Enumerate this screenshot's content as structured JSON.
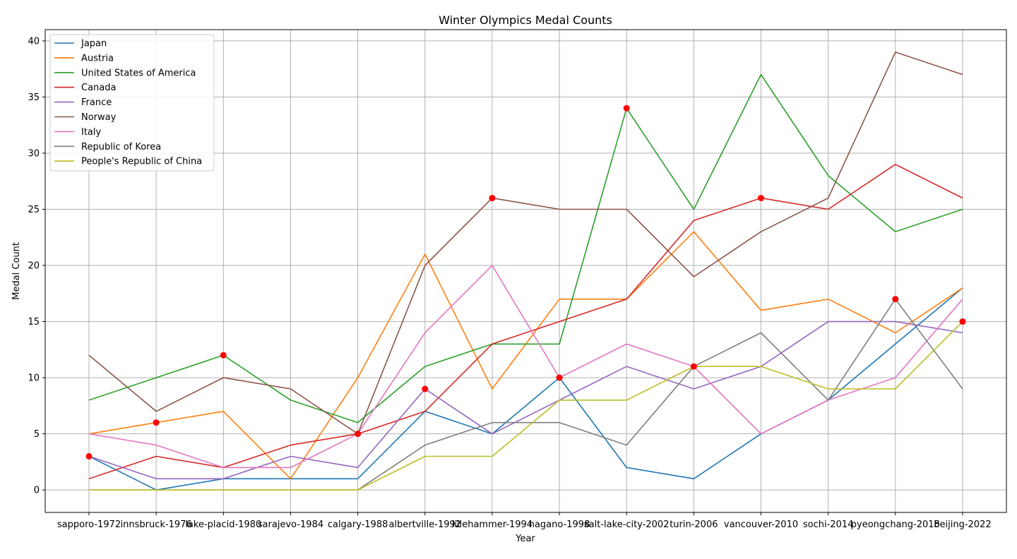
{
  "chart_data": {
    "type": "line",
    "title": "Winter Olympics Medal Counts",
    "xlabel": "Year",
    "ylabel": "Medal Count",
    "categories": [
      "sapporo-1972",
      "innsbruck-1976",
      "lake-placid-1980",
      "sarajevo-1984",
      "calgary-1988",
      "albertville-1992",
      "lillehammer-1994",
      "nagano-1998",
      "salt-lake-city-2002",
      "turin-2006",
      "vancouver-2010",
      "sochi-2014",
      "pyeongchang-2018",
      "beijing-2022"
    ],
    "ylim": [
      -2,
      41
    ],
    "yticks": [
      0,
      5,
      10,
      15,
      20,
      25,
      30,
      35,
      40
    ],
    "grid": true,
    "legend_position": "upper left",
    "series": [
      {
        "name": "Japan",
        "color": "#1f77b4",
        "values": [
          3,
          0,
          1,
          1,
          1,
          7,
          5,
          10,
          2,
          1,
          5,
          8,
          13,
          18
        ]
      },
      {
        "name": "Austria",
        "color": "#ff7f0e",
        "values": [
          5,
          6,
          7,
          1,
          10,
          21,
          9,
          17,
          17,
          23,
          16,
          17,
          14,
          18
        ]
      },
      {
        "name": "United States of America",
        "color": "#2ca02c",
        "values": [
          8,
          10,
          12,
          8,
          6,
          11,
          13,
          13,
          34,
          25,
          37,
          28,
          23,
          25
        ]
      },
      {
        "name": "Canada",
        "color": "#d62728",
        "values": [
          1,
          3,
          2,
          4,
          5,
          7,
          13,
          15,
          17,
          24,
          26,
          25,
          29,
          26
        ]
      },
      {
        "name": "France",
        "color": "#9467bd",
        "values": [
          3,
          1,
          1,
          3,
          2,
          9,
          5,
          8,
          11,
          9,
          11,
          15,
          15,
          14
        ]
      },
      {
        "name": "Norway",
        "color": "#8c564b",
        "values": [
          12,
          7,
          10,
          9,
          5,
          20,
          26,
          25,
          25,
          19,
          23,
          26,
          39,
          37
        ]
      },
      {
        "name": "Italy",
        "color": "#e377c2",
        "values": [
          5,
          4,
          2,
          2,
          5,
          14,
          20,
          10,
          13,
          11,
          5,
          8,
          10,
          17
        ]
      },
      {
        "name": "Republic of Korea",
        "color": "#7f7f7f",
        "values": [
          0,
          0,
          0,
          0,
          0,
          4,
          6,
          6,
          4,
          11,
          14,
          8,
          17,
          9
        ]
      },
      {
        "name": "People's Republic of China",
        "color": "#bcbd22",
        "values": [
          0,
          0,
          0,
          0,
          0,
          3,
          3,
          8,
          8,
          11,
          11,
          9,
          9,
          15
        ]
      }
    ],
    "highlight_points": {
      "color": "#ff0000",
      "points": [
        {
          "x": "sapporo-1972",
          "y": 3
        },
        {
          "x": "innsbruck-1976",
          "y": 6
        },
        {
          "x": "lake-placid-1980",
          "y": 12
        },
        {
          "x": "calgary-1988",
          "y": 5
        },
        {
          "x": "albertville-1992",
          "y": 9
        },
        {
          "x": "lillehammer-1994",
          "y": 26
        },
        {
          "x": "nagano-1998",
          "y": 10
        },
        {
          "x": "salt-lake-city-2002",
          "y": 34
        },
        {
          "x": "turin-2006",
          "y": 11
        },
        {
          "x": "vancouver-2010",
          "y": 26
        },
        {
          "x": "pyeongchang-2018",
          "y": 17
        },
        {
          "x": "beijing-2022",
          "y": 15
        }
      ]
    }
  }
}
